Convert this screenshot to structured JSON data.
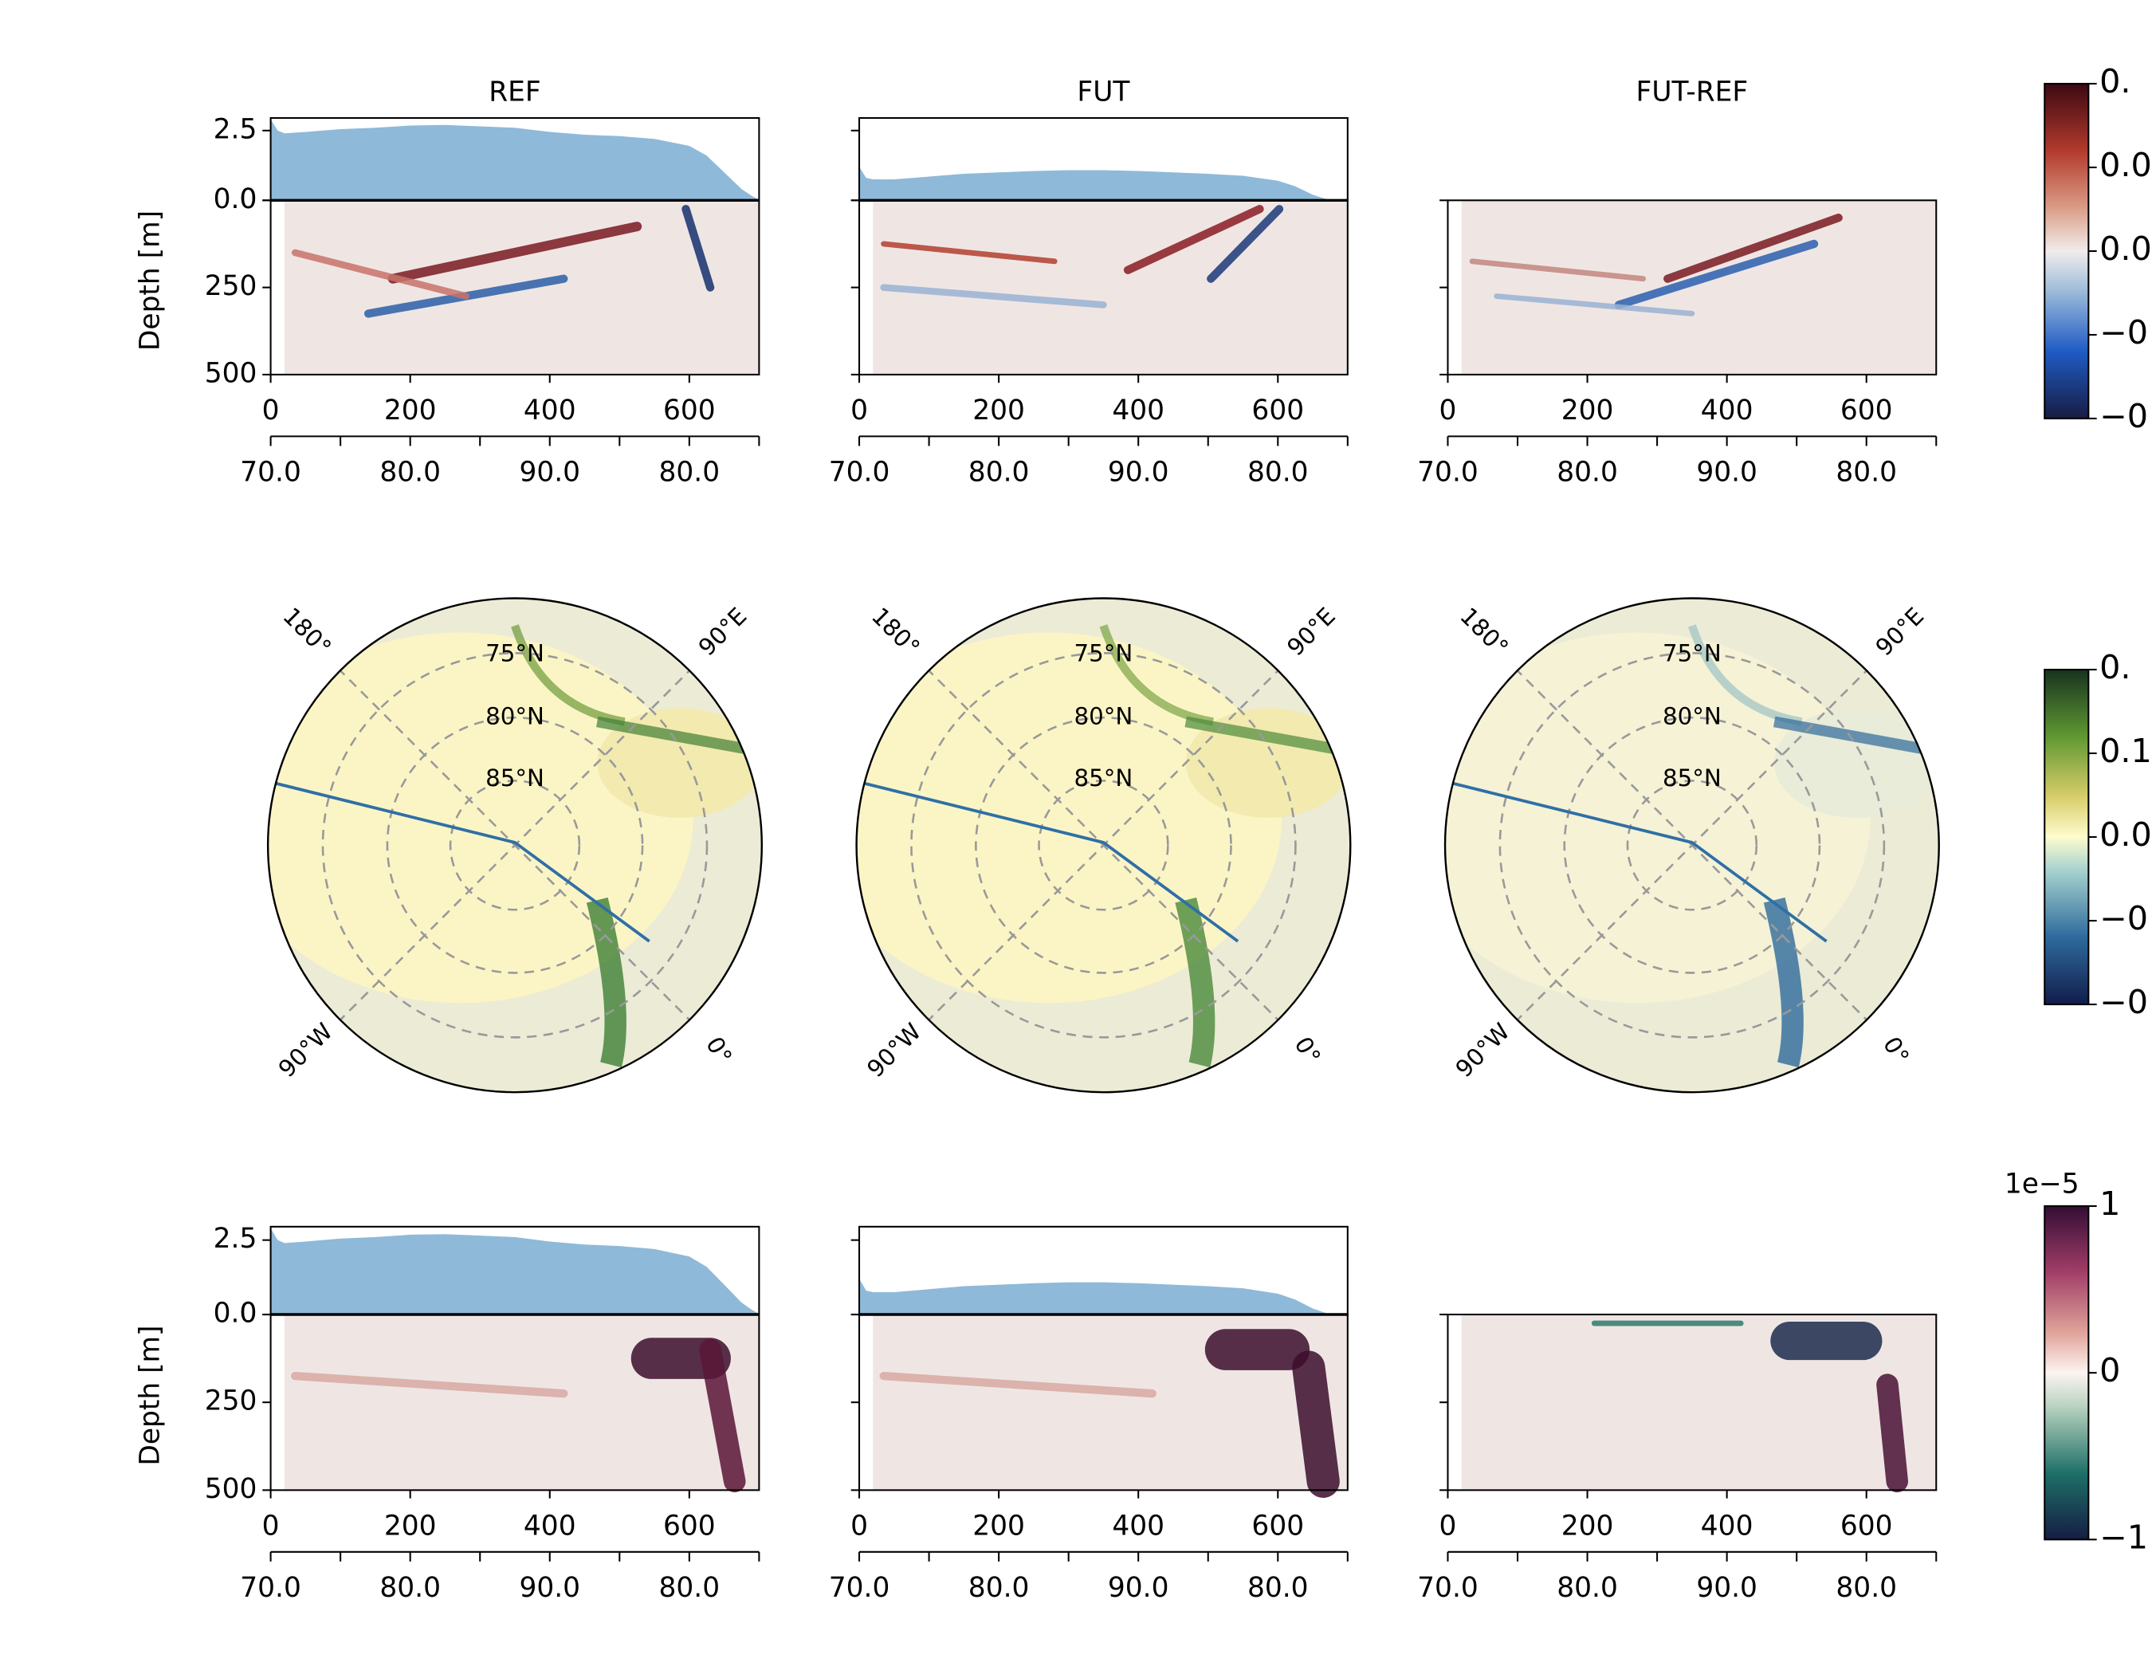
{
  "chart_data": {
    "type": "section-map-grid",
    "columns": [
      "REF",
      "FUT",
      "FUT-REF"
    ],
    "y_label": "Depth [m]",
    "distance": {
      "xlim": [
        0,
        700
      ],
      "xticks": [
        0,
        200,
        400,
        600
      ]
    },
    "latitude_ticks": [
      {
        "value": 0,
        "label": "70.0"
      },
      {
        "value": 200,
        "label": "80.0"
      },
      {
        "value": 400,
        "label": "90.0"
      },
      {
        "value": 600,
        "label": "80.0"
      }
    ],
    "latitude_minor_ticks": [
      100,
      300,
      500,
      700
    ],
    "depth": {
      "ylim": [
        500,
        0
      ],
      "yticks": [
        0,
        250,
        500
      ]
    },
    "ice_thickness": {
      "ylim": [
        0,
        2.95
      ],
      "yticks": [
        {
          "value": 0,
          "label": "0.0"
        },
        {
          "value": 2.5,
          "label": "2.5"
        }
      ],
      "color": "#8fb9d8",
      "x": [
        0,
        10,
        20,
        50,
        100,
        150,
        200,
        250,
        300,
        350,
        400,
        450,
        500,
        550,
        600,
        625,
        650,
        675,
        690,
        698
      ],
      "series": [
        {
          "values": [
            2.9,
            2.5,
            2.4,
            2.45,
            2.55,
            2.6,
            2.68,
            2.7,
            2.65,
            2.6,
            2.45,
            2.35,
            2.3,
            2.2,
            1.95,
            1.6,
            1.0,
            0.4,
            0.15,
            0.05
          ]
        },
        {
          "values": [
            1.2,
            0.8,
            0.75,
            0.75,
            0.85,
            0.95,
            1.0,
            1.05,
            1.08,
            1.08,
            1.05,
            1.0,
            0.95,
            0.88,
            0.7,
            0.5,
            0.2,
            0,
            0,
            0
          ]
        }
      ]
    },
    "map": {
      "lat_labels": [
        "75°N",
        "80°N",
        "85°N"
      ],
      "lon_labels": [
        "180°",
        "90°E",
        "0°",
        "90°W"
      ]
    },
    "colorbars": [
      {
        "tick_labels": [
          "0.",
          "0.0",
          "0.0",
          "−0",
          "−0"
        ]
      },
      {
        "tick_labels": [
          "0.",
          "0.1",
          "0.0",
          "−0",
          "−0"
        ]
      },
      {
        "offset": "1e−5",
        "tick_labels": [
          "1",
          "0",
          "−1"
        ]
      }
    ]
  }
}
